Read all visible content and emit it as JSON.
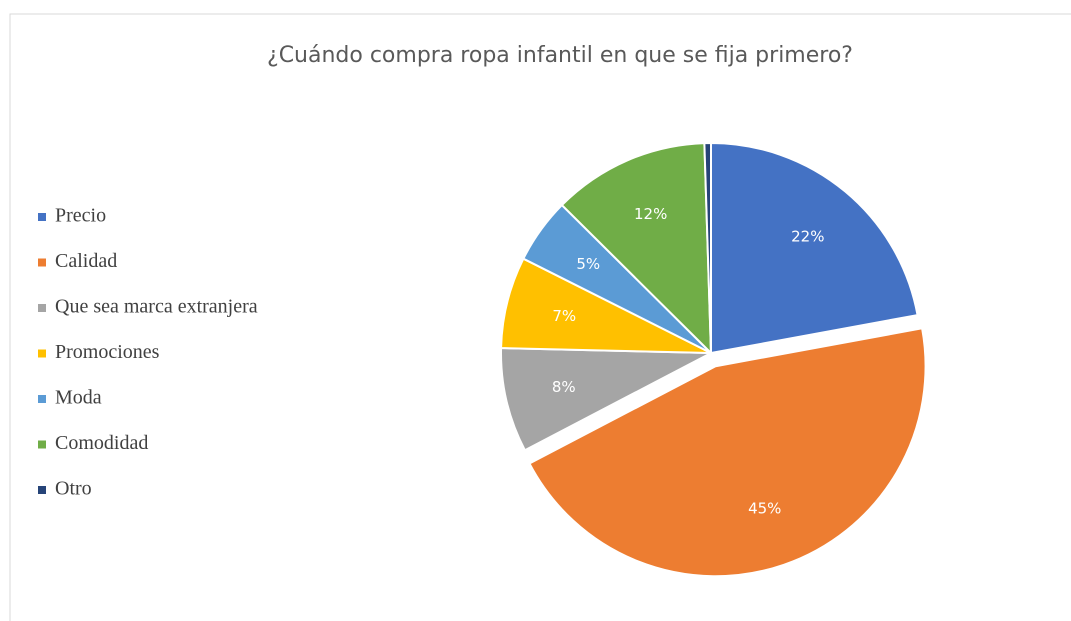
{
  "chart_data": {
    "type": "pie",
    "title": "¿Cuándo compra ropa infantil en que se fija primero?",
    "categories": [
      "Precio",
      "Calidad",
      "Que sea marca extranjera",
      "Promociones",
      "Moda",
      "Comodidad",
      "Otro"
    ],
    "values": [
      22,
      45,
      8,
      7,
      5,
      12,
      0.5
    ],
    "value_labels": [
      "22%",
      "45%",
      "8%",
      "7%",
      "5%",
      "12%",
      null
    ],
    "colors": [
      "#4472c4",
      "#ed7d31",
      "#a5a5a5",
      "#ffc000",
      "#5b9bd5",
      "#70ad47",
      "#264478"
    ],
    "legend": "left"
  }
}
